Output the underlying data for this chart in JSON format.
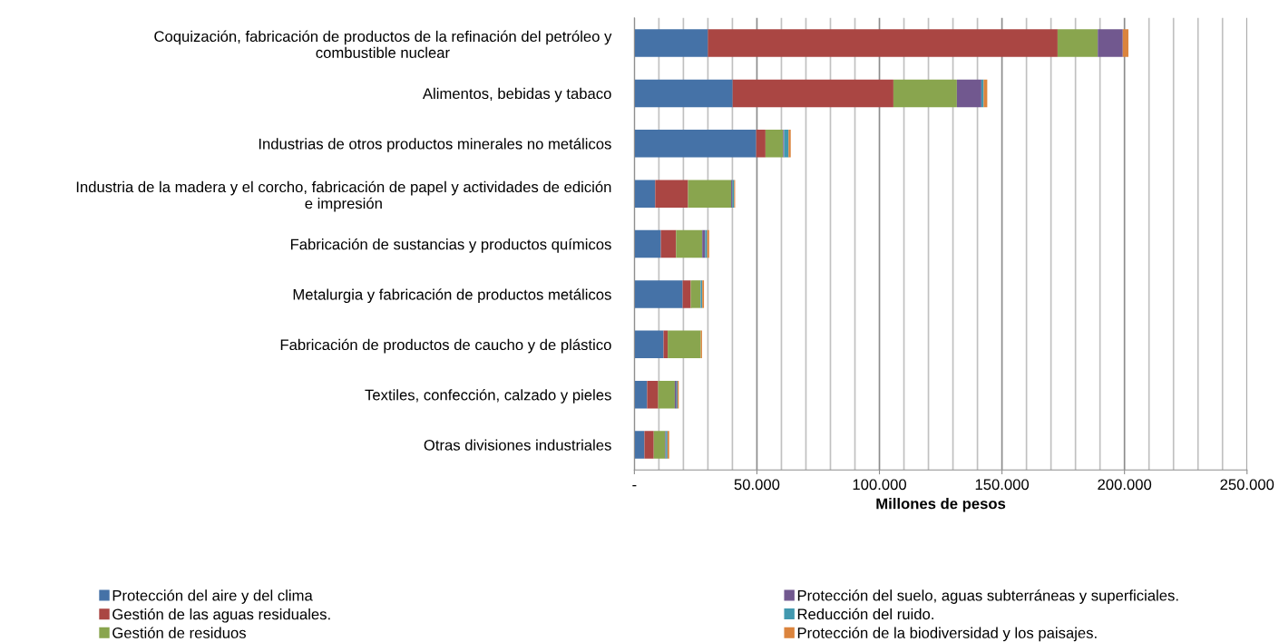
{
  "chart_data": {
    "type": "bar",
    "orientation": "horizontal",
    "stacked": true,
    "xlabel": "Millones de pesos",
    "categories": [
      "Coquización, fabricación de productos de la refinación del petróleo y\ncombustible nuclear",
      "Alimentos, bebidas y tabaco",
      "Industrias de otros productos minerales no metálicos",
      "Industria de la madera y el corcho, fabricación de papel y actividades de edición\ne impresión",
      "Fabricación de sustancias y productos químicos",
      "Metalurgia y fabricación de productos metálicos",
      "Fabricación de productos de caucho y de plástico",
      "Textiles, confección, calzado y pieles",
      "Otras divisiones industriales"
    ],
    "series": [
      {
        "name": "Protección del aire y del clima",
        "color": "#4572a7",
        "values": [
          30000,
          40100,
          49700,
          8500,
          10800,
          19700,
          11900,
          5200,
          4100
        ]
      },
      {
        "name": "Gestión de las aguas residuales.",
        "color": "#aa4643",
        "values": [
          142700,
          65600,
          3800,
          13400,
          6200,
          3300,
          1700,
          4500,
          3800
        ]
      },
      {
        "name": "Gestión de residuos",
        "color": "#89a54e",
        "values": [
          16400,
          25900,
          7200,
          17600,
          10700,
          4000,
          13500,
          6800,
          4700
        ]
      },
      {
        "name": "Protección del suelo, aguas subterráneas y superficiales.",
        "color": "#71588f",
        "values": [
          10200,
          10000,
          400,
          500,
          1200,
          100,
          0,
          700,
          300
        ]
      },
      {
        "name": "Reducción del ruido.",
        "color": "#4198af",
        "values": [
          0,
          900,
          1800,
          700,
          800,
          600,
          0,
          400,
          600
        ]
      },
      {
        "name": "Protección de la biodiversidad y los paisajes.",
        "color": "#db843d",
        "values": [
          2300,
          1500,
          900,
          400,
          800,
          700,
          500,
          500,
          700
        ]
      }
    ],
    "xlim": [
      0,
      250000
    ],
    "xticks": [
      {
        "value": 0,
        "label": "-"
      },
      {
        "value": 10000,
        "label": null
      },
      {
        "value": 20000,
        "label": null
      },
      {
        "value": 30000,
        "label": null
      },
      {
        "value": 40000,
        "label": null
      },
      {
        "value": 50000,
        "label": "50.000"
      },
      {
        "value": 60000,
        "label": null
      },
      {
        "value": 70000,
        "label": null
      },
      {
        "value": 80000,
        "label": null
      },
      {
        "value": 90000,
        "label": null
      },
      {
        "value": 100000,
        "label": "100.000"
      },
      {
        "value": 110000,
        "label": null
      },
      {
        "value": 120000,
        "label": null
      },
      {
        "value": 130000,
        "label": null
      },
      {
        "value": 140000,
        "label": null
      },
      {
        "value": 150000,
        "label": "150.000"
      },
      {
        "value": 160000,
        "label": null
      },
      {
        "value": 170000,
        "label": null
      },
      {
        "value": 180000,
        "label": null
      },
      {
        "value": 190000,
        "label": null
      },
      {
        "value": 200000,
        "label": "200.000"
      },
      {
        "value": 210000,
        "label": null
      },
      {
        "value": 220000,
        "label": null
      },
      {
        "value": 230000,
        "label": null
      },
      {
        "value": 240000,
        "label": null
      },
      {
        "value": 250000,
        "label": "250.000"
      }
    ],
    "grid": "x",
    "legend": "bottom"
  }
}
